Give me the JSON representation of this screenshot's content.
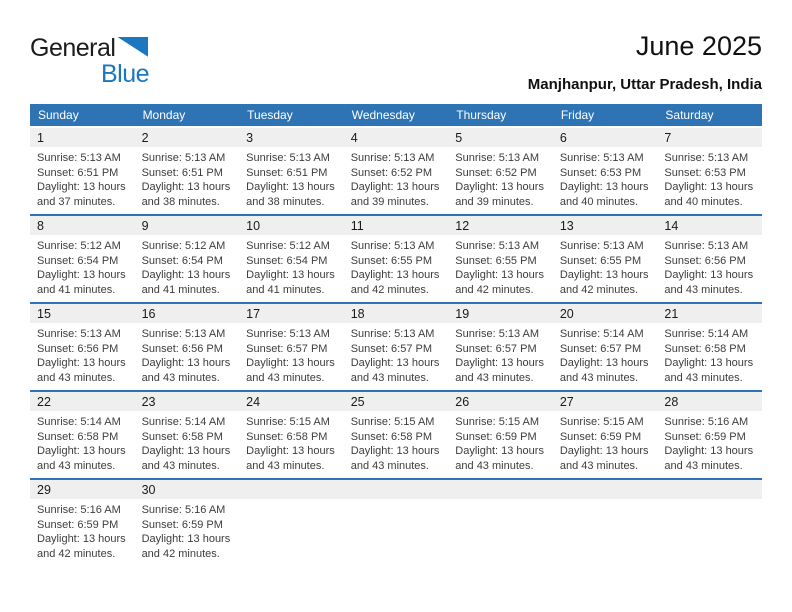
{
  "logo": {
    "general": "General",
    "blue": "Blue"
  },
  "header": {
    "title": "June 2025",
    "location": "Manjhanpur, Uttar Pradesh, India"
  },
  "colors": {
    "accent": "#2E74B5",
    "day_strip_bg": "#EFEFEF",
    "logo_blue": "#1B78C0",
    "header_text": "#FFFFFF"
  },
  "weekdays": [
    "Sunday",
    "Monday",
    "Tuesday",
    "Wednesday",
    "Thursday",
    "Friday",
    "Saturday"
  ],
  "weeks": [
    {
      "cells": [
        {
          "day": "1",
          "sunrise": "Sunrise: 5:13 AM",
          "sunset": "Sunset: 6:51 PM",
          "daylight": "Daylight: 13 hours and 37 minutes."
        },
        {
          "day": "2",
          "sunrise": "Sunrise: 5:13 AM",
          "sunset": "Sunset: 6:51 PM",
          "daylight": "Daylight: 13 hours and 38 minutes."
        },
        {
          "day": "3",
          "sunrise": "Sunrise: 5:13 AM",
          "sunset": "Sunset: 6:51 PM",
          "daylight": "Daylight: 13 hours and 38 minutes."
        },
        {
          "day": "4",
          "sunrise": "Sunrise: 5:13 AM",
          "sunset": "Sunset: 6:52 PM",
          "daylight": "Daylight: 13 hours and 39 minutes."
        },
        {
          "day": "5",
          "sunrise": "Sunrise: 5:13 AM",
          "sunset": "Sunset: 6:52 PM",
          "daylight": "Daylight: 13 hours and 39 minutes."
        },
        {
          "day": "6",
          "sunrise": "Sunrise: 5:13 AM",
          "sunset": "Sunset: 6:53 PM",
          "daylight": "Daylight: 13 hours and 40 minutes."
        },
        {
          "day": "7",
          "sunrise": "Sunrise: 5:13 AM",
          "sunset": "Sunset: 6:53 PM",
          "daylight": "Daylight: 13 hours and 40 minutes."
        }
      ]
    },
    {
      "cells": [
        {
          "day": "8",
          "sunrise": "Sunrise: 5:12 AM",
          "sunset": "Sunset: 6:54 PM",
          "daylight": "Daylight: 13 hours and 41 minutes."
        },
        {
          "day": "9",
          "sunrise": "Sunrise: 5:12 AM",
          "sunset": "Sunset: 6:54 PM",
          "daylight": "Daylight: 13 hours and 41 minutes."
        },
        {
          "day": "10",
          "sunrise": "Sunrise: 5:12 AM",
          "sunset": "Sunset: 6:54 PM",
          "daylight": "Daylight: 13 hours and 41 minutes."
        },
        {
          "day": "11",
          "sunrise": "Sunrise: 5:13 AM",
          "sunset": "Sunset: 6:55 PM",
          "daylight": "Daylight: 13 hours and 42 minutes."
        },
        {
          "day": "12",
          "sunrise": "Sunrise: 5:13 AM",
          "sunset": "Sunset: 6:55 PM",
          "daylight": "Daylight: 13 hours and 42 minutes."
        },
        {
          "day": "13",
          "sunrise": "Sunrise: 5:13 AM",
          "sunset": "Sunset: 6:55 PM",
          "daylight": "Daylight: 13 hours and 42 minutes."
        },
        {
          "day": "14",
          "sunrise": "Sunrise: 5:13 AM",
          "sunset": "Sunset: 6:56 PM",
          "daylight": "Daylight: 13 hours and 43 minutes."
        }
      ]
    },
    {
      "cells": [
        {
          "day": "15",
          "sunrise": "Sunrise: 5:13 AM",
          "sunset": "Sunset: 6:56 PM",
          "daylight": "Daylight: 13 hours and 43 minutes."
        },
        {
          "day": "16",
          "sunrise": "Sunrise: 5:13 AM",
          "sunset": "Sunset: 6:56 PM",
          "daylight": "Daylight: 13 hours and 43 minutes."
        },
        {
          "day": "17",
          "sunrise": "Sunrise: 5:13 AM",
          "sunset": "Sunset: 6:57 PM",
          "daylight": "Daylight: 13 hours and 43 minutes."
        },
        {
          "day": "18",
          "sunrise": "Sunrise: 5:13 AM",
          "sunset": "Sunset: 6:57 PM",
          "daylight": "Daylight: 13 hours and 43 minutes."
        },
        {
          "day": "19",
          "sunrise": "Sunrise: 5:13 AM",
          "sunset": "Sunset: 6:57 PM",
          "daylight": "Daylight: 13 hours and 43 minutes."
        },
        {
          "day": "20",
          "sunrise": "Sunrise: 5:14 AM",
          "sunset": "Sunset: 6:57 PM",
          "daylight": "Daylight: 13 hours and 43 minutes."
        },
        {
          "day": "21",
          "sunrise": "Sunrise: 5:14 AM",
          "sunset": "Sunset: 6:58 PM",
          "daylight": "Daylight: 13 hours and 43 minutes."
        }
      ]
    },
    {
      "cells": [
        {
          "day": "22",
          "sunrise": "Sunrise: 5:14 AM",
          "sunset": "Sunset: 6:58 PM",
          "daylight": "Daylight: 13 hours and 43 minutes."
        },
        {
          "day": "23",
          "sunrise": "Sunrise: 5:14 AM",
          "sunset": "Sunset: 6:58 PM",
          "daylight": "Daylight: 13 hours and 43 minutes."
        },
        {
          "day": "24",
          "sunrise": "Sunrise: 5:15 AM",
          "sunset": "Sunset: 6:58 PM",
          "daylight": "Daylight: 13 hours and 43 minutes."
        },
        {
          "day": "25",
          "sunrise": "Sunrise: 5:15 AM",
          "sunset": "Sunset: 6:58 PM",
          "daylight": "Daylight: 13 hours and 43 minutes."
        },
        {
          "day": "26",
          "sunrise": "Sunrise: 5:15 AM",
          "sunset": "Sunset: 6:59 PM",
          "daylight": "Daylight: 13 hours and 43 minutes."
        },
        {
          "day": "27",
          "sunrise": "Sunrise: 5:15 AM",
          "sunset": "Sunset: 6:59 PM",
          "daylight": "Daylight: 13 hours and 43 minutes."
        },
        {
          "day": "28",
          "sunrise": "Sunrise: 5:16 AM",
          "sunset": "Sunset: 6:59 PM",
          "daylight": "Daylight: 13 hours and 43 minutes."
        }
      ]
    },
    {
      "cells": [
        {
          "day": "29",
          "sunrise": "Sunrise: 5:16 AM",
          "sunset": "Sunset: 6:59 PM",
          "daylight": "Daylight: 13 hours and 42 minutes."
        },
        {
          "day": "30",
          "sunrise": "Sunrise: 5:16 AM",
          "sunset": "Sunset: 6:59 PM",
          "daylight": "Daylight: 13 hours and 42 minutes."
        },
        {},
        {},
        {},
        {},
        {}
      ]
    }
  ]
}
